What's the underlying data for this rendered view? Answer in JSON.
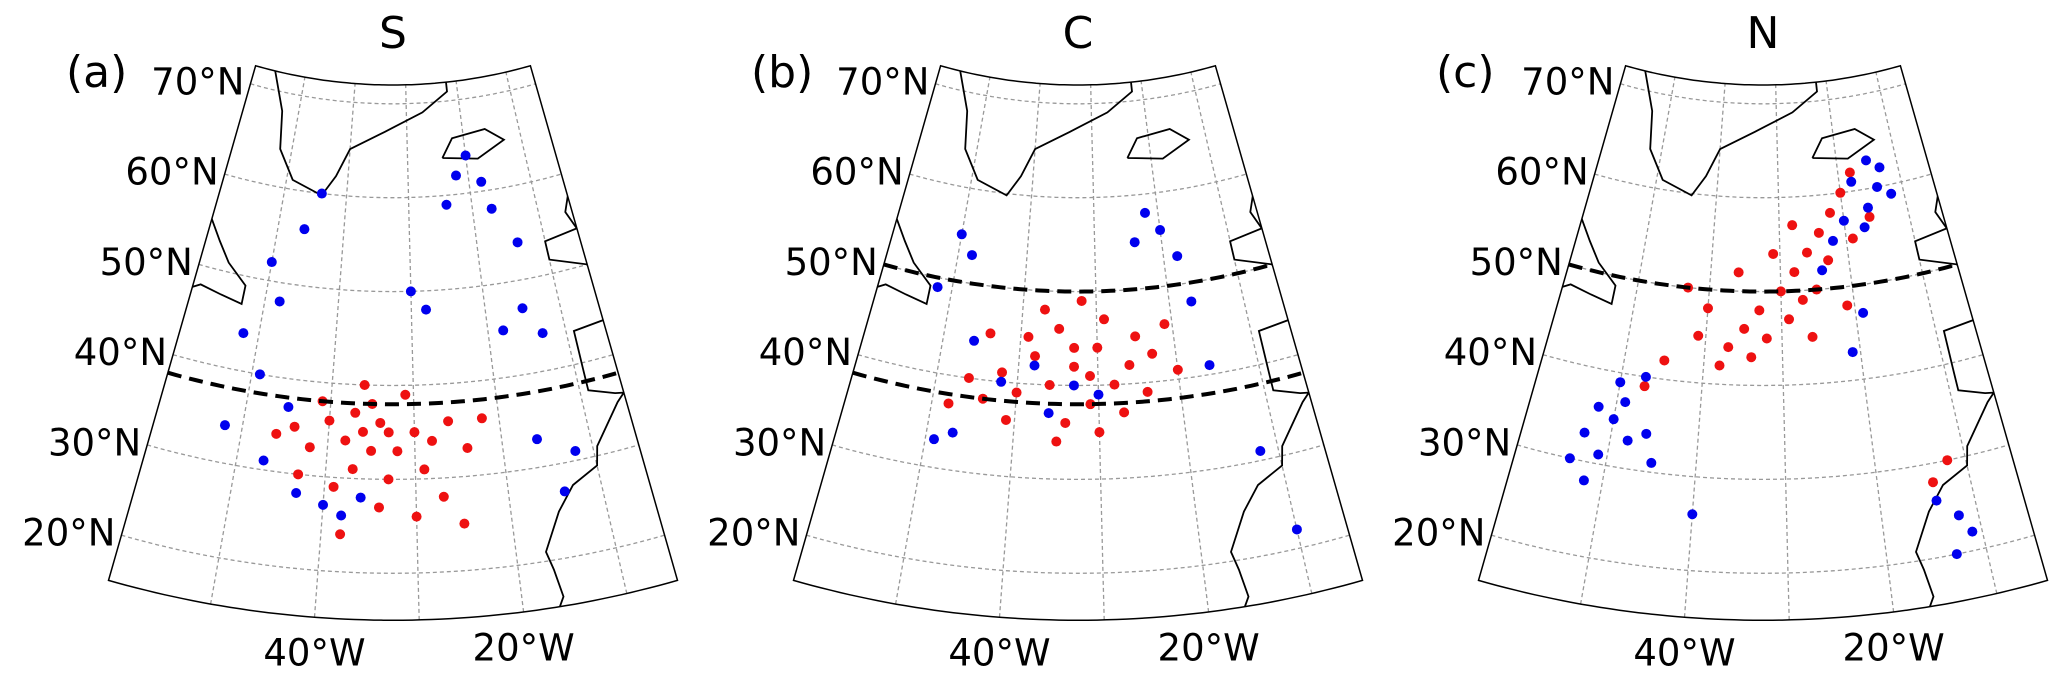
{
  "chart_data": [
    {
      "type": "scatter",
      "panel_label": "(a)",
      "title": "S",
      "xlim": [
        -60,
        -5
      ],
      "ylim": [
        15,
        72
      ],
      "yticks": [
        {
          "value": 20,
          "label": "20°N"
        },
        {
          "value": 30,
          "label": "30°N"
        },
        {
          "value": 40,
          "label": "40°N"
        },
        {
          "value": 50,
          "label": "50°N"
        },
        {
          "value": 60,
          "label": "60°N"
        },
        {
          "value": 70,
          "label": "70°N"
        }
      ],
      "xticks": [
        {
          "value": -40,
          "label": "40°W"
        },
        {
          "value": -20,
          "label": "20°W"
        }
      ],
      "xgrid": [
        -50,
        -40,
        -30,
        -20,
        -10
      ],
      "grid": true,
      "hlines": [
        38
      ],
      "series": [
        {
          "color": "#ee1111",
          "x": [
            -36,
            -34,
            -38,
            -32,
            -40,
            -30,
            -42,
            -35,
            -28,
            -37,
            -33,
            -39,
            -44,
            -26,
            -31,
            -36,
            -29,
            -41,
            -34,
            -27,
            -30,
            -38,
            -24,
            -22,
            -46,
            -25,
            -43,
            -35,
            -33,
            -37
          ],
          "values": [
            35,
            36,
            34,
            33,
            36,
            35,
            33,
            38,
            34,
            31,
            30,
            29,
            35,
            36,
            39,
            40,
            31,
            38,
            27,
            28,
            26,
            24,
            33,
            36,
            34,
            25,
            30,
            33,
            35,
            37
          ]
        },
        {
          "color": "#0000ee",
          "x": [
            -50,
            -48,
            -52,
            -46,
            -44,
            -49,
            -45,
            -43,
            -40,
            -38,
            -36,
            -30,
            -22,
            -20,
            -18,
            -24,
            -17,
            -14,
            -15,
            -13,
            -18,
            -16,
            -12,
            -14,
            -47,
            -52,
            -28
          ],
          "values": [
            52,
            48,
            44,
            56,
            60,
            40,
            37,
            28,
            27,
            26,
            28,
            50,
            62,
            64,
            61,
            59,
            58,
            54,
            47,
            44,
            45,
            33,
            31,
            27,
            31,
            34,
            48
          ]
        }
      ]
    },
    {
      "type": "scatter",
      "panel_label": "(b)",
      "title": "C",
      "xlim": [
        -60,
        -5
      ],
      "ylim": [
        15,
        72
      ],
      "yticks": [
        {
          "value": 20,
          "label": "20°N"
        },
        {
          "value": 30,
          "label": "30°N"
        },
        {
          "value": 40,
          "label": "40°N"
        },
        {
          "value": 50,
          "label": "50°N"
        },
        {
          "value": 60,
          "label": "60°N"
        },
        {
          "value": 70,
          "label": "70°N"
        }
      ],
      "xticks": [
        {
          "value": -40,
          "label": "40°W"
        },
        {
          "value": -20,
          "label": "20°W"
        }
      ],
      "xgrid": [
        -50,
        -40,
        -30,
        -20,
        -10
      ],
      "grid": true,
      "hlines": [
        38,
        50
      ],
      "series": [
        {
          "color": "#ee1111",
          "x": [
            -33,
            -30,
            -36,
            -28,
            -38,
            -35,
            -25,
            -40,
            -31,
            -34,
            -27,
            -42,
            -44,
            -29,
            -32,
            -37,
            -23,
            -21,
            -26,
            -39,
            -46,
            -41,
            -30,
            -35,
            -24,
            -48,
            -33,
            -31,
            -20,
            -44
          ],
          "values": [
            42,
            44,
            40,
            40,
            43,
            46,
            45,
            39,
            38,
            36,
            37,
            41,
            38,
            47,
            49,
            48,
            43,
            46,
            42,
            45,
            40,
            36,
            35,
            34,
            39,
            37,
            44,
            41,
            41,
            45
          ]
        },
        {
          "color": "#0000ee",
          "x": [
            -50,
            -48,
            -52,
            -46,
            -42,
            -38,
            -36,
            -33,
            -47,
            -49,
            -22,
            -20,
            -24,
            -18,
            -17,
            -16,
            -12,
            -10,
            -30
          ],
          "values": [
            55,
            53,
            49,
            44,
            40,
            42,
            37,
            40,
            34,
            33,
            58,
            56,
            55,
            53,
            48,
            41,
            31,
            22,
            39
          ]
        }
      ]
    },
    {
      "type": "scatter",
      "panel_label": "(c)",
      "title": "N",
      "xlim": [
        -60,
        -5
      ],
      "ylim": [
        15,
        72
      ],
      "yticks": [
        {
          "value": 20,
          "label": "20°N"
        },
        {
          "value": 30,
          "label": "30°N"
        },
        {
          "value": 40,
          "label": "40°N"
        },
        {
          "value": 50,
          "label": "50°N"
        },
        {
          "value": 60,
          "label": "60°N"
        },
        {
          "value": 70,
          "label": "70°N"
        }
      ],
      "xticks": [
        {
          "value": -40,
          "label": "40°W"
        },
        {
          "value": -20,
          "label": "20°W"
        }
      ],
      "xgrid": [
        -50,
        -40,
        -30,
        -20,
        -10
      ],
      "grid": true,
      "hlines": [
        50
      ],
      "series": [
        {
          "color": "#ee1111",
          "x": [
            -30,
            -28,
            -33,
            -26,
            -24,
            -22,
            -35,
            -37,
            -32,
            -29,
            -25,
            -20,
            -18,
            -27,
            -34,
            -38,
            -40,
            -36,
            -31,
            -45,
            -47,
            -41,
            -23,
            -21,
            -26,
            -16,
            -19,
            -28,
            -43,
            -14,
            -12
          ],
          "values": [
            50,
            52,
            48,
            54,
            56,
            58,
            46,
            44,
            45,
            47,
            50,
            60,
            62,
            49,
            43,
            42,
            48,
            52,
            54,
            42,
            39,
            45,
            53,
            48,
            45,
            57,
            55,
            57,
            50,
            28,
            30
          ]
        },
        {
          "color": "#0000ee",
          "x": [
            -16,
            -14,
            -18,
            -15,
            -12,
            -17,
            -20,
            -13,
            -22,
            -24,
            -19,
            -21,
            -52,
            -53,
            -50,
            -51,
            -49,
            -54,
            -48,
            -50,
            -46,
            -47,
            -45,
            -52,
            -40,
            -14,
            -12,
            -13,
            -11
          ],
          "values": [
            58,
            60,
            61,
            63,
            59,
            56,
            57,
            62,
            55,
            52,
            47,
            43,
            36,
            33,
            35,
            31,
            37,
            30,
            33,
            39,
            34,
            40,
            31,
            28,
            26,
            26,
            24,
            20,
            22
          ]
        }
      ]
    }
  ]
}
